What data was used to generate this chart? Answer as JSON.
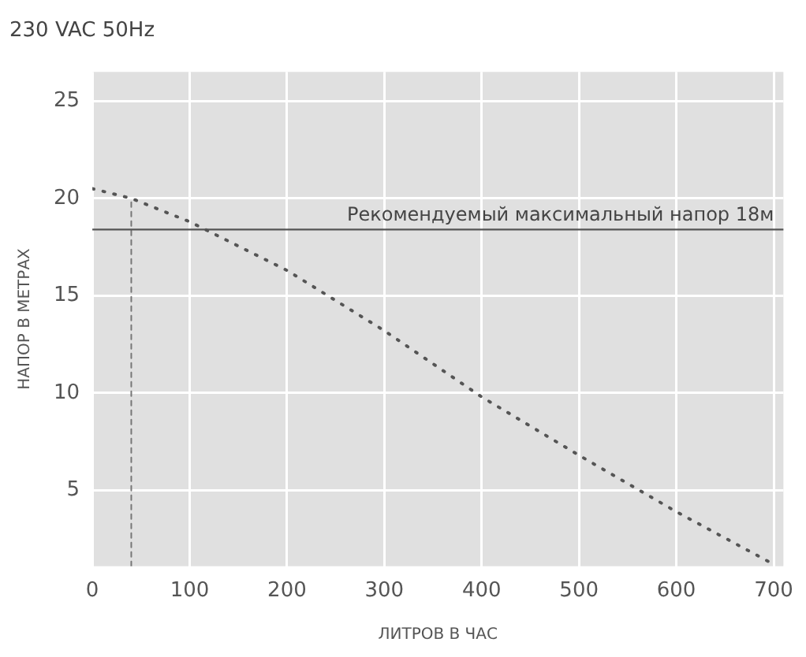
{
  "chart_data": {
    "type": "line",
    "title": "230 VAC 50Hz",
    "xlabel": "ЛИТРОВ В ЧАС",
    "ylabel": "НАПОР В МЕТРАХ",
    "xlim": [
      0,
      710
    ],
    "ylim": [
      1.1,
      26.5
    ],
    "xticks": [
      0,
      100,
      200,
      300,
      400,
      500,
      600,
      700
    ],
    "yticks": [
      5,
      10,
      15,
      20,
      25
    ],
    "grid": true,
    "marker": "none",
    "series": [
      {
        "color": "#555555",
        "line_style": "dotted",
        "x": [
          0,
          40,
          100,
          200,
          300,
          400,
          500,
          600,
          700
        ],
        "values": [
          20.5,
          20,
          18.8,
          16.3,
          13.2,
          9.8,
          6.8,
          3.9,
          1.2
        ]
      },
      {
        "color": "#777777",
        "line_style": "dashed",
        "x": [
          40,
          40
        ],
        "values": [
          1.1,
          20
        ]
      }
    ],
    "ref_lines": [
      {
        "axis": "y",
        "value": 18.4,
        "label": "Рекомендуемый максимальный напор 18м",
        "color": "#555555",
        "line_style": "solid"
      }
    ]
  }
}
